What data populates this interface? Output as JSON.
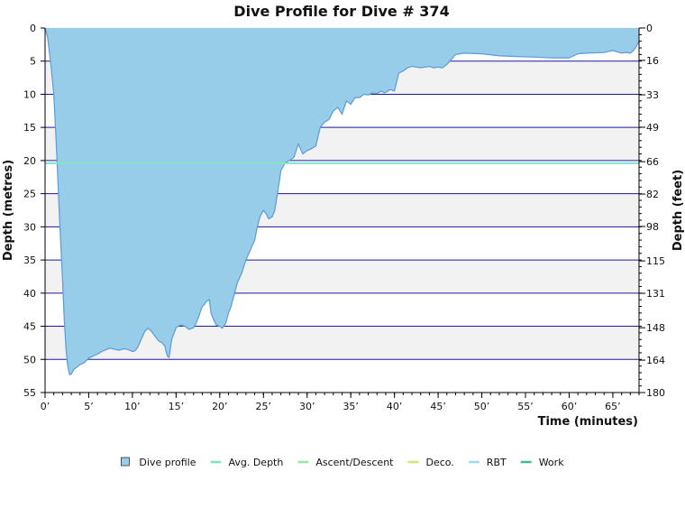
{
  "chart_data": {
    "type": "area",
    "title": "Dive Profile for Dive # 374",
    "xlabel": "Time (minutes)",
    "ylabel_left": "Depth (metres)",
    "ylabel_right": "Depth (feet)",
    "xlim": [
      0,
      68
    ],
    "ylim": [
      0,
      55
    ],
    "y_inverted": true,
    "x_ticks": [
      {
        "value": 0,
        "label": "0’"
      },
      {
        "value": 5,
        "label": "5’"
      },
      {
        "value": 10,
        "label": "10’"
      },
      {
        "value": 15,
        "label": "15’"
      },
      {
        "value": 20,
        "label": "20’"
      },
      {
        "value": 25,
        "label": "25’"
      },
      {
        "value": 30,
        "label": "30’"
      },
      {
        "value": 35,
        "label": "35’"
      },
      {
        "value": 40,
        "label": "40’"
      },
      {
        "value": 45,
        "label": "45’"
      },
      {
        "value": 50,
        "label": "50’"
      },
      {
        "value": 55,
        "label": "55’"
      },
      {
        "value": 60,
        "label": "60’"
      },
      {
        "value": 65,
        "label": "65’"
      }
    ],
    "y_ticks_left": [
      {
        "value": 0,
        "label": "0"
      },
      {
        "value": 5,
        "label": "5"
      },
      {
        "value": 10,
        "label": "10"
      },
      {
        "value": 15,
        "label": "15"
      },
      {
        "value": 20,
        "label": "20"
      },
      {
        "value": 25,
        "label": "25"
      },
      {
        "value": 30,
        "label": "30"
      },
      {
        "value": 35,
        "label": "35"
      },
      {
        "value": 40,
        "label": "40"
      },
      {
        "value": 45,
        "label": "45"
      },
      {
        "value": 50,
        "label": "50"
      },
      {
        "value": 55,
        "label": "55"
      }
    ],
    "y_ticks_right": [
      {
        "value": 0,
        "label": "0"
      },
      {
        "value": 16,
        "label": "16"
      },
      {
        "value": 33,
        "label": "33"
      },
      {
        "value": 49,
        "label": "49"
      },
      {
        "value": 66,
        "label": "66"
      },
      {
        "value": 82,
        "label": "82"
      },
      {
        "value": 98,
        "label": "98"
      },
      {
        "value": 115,
        "label": "115"
      },
      {
        "value": 131,
        "label": "131"
      },
      {
        "value": 148,
        "label": "148"
      },
      {
        "value": 164,
        "label": "164"
      },
      {
        "value": 180,
        "label": "180"
      }
    ],
    "grid": true,
    "avg_depth": 20.4,
    "series": [
      {
        "name": "Dive profile",
        "color": "#97cde9",
        "x": [
          0,
          0.3,
          0.7,
          1.0,
          1.3,
          1.7,
          2.0,
          2.2,
          2.4,
          2.6,
          2.8,
          3.0,
          3.3,
          3.6,
          4.0,
          4.5,
          5.0,
          5.5,
          6.0,
          6.5,
          7.0,
          7.5,
          8.0,
          8.5,
          9.0,
          9.5,
          10.0,
          10.3,
          10.6,
          11.0,
          11.4,
          11.8,
          12.2,
          12.6,
          13.0,
          13.4,
          13.7,
          14.0,
          14.2,
          14.5,
          15.0,
          15.5,
          16.0,
          16.5,
          17.0,
          17.3,
          17.6,
          18.0,
          18.2,
          18.5,
          18.8,
          19.0,
          19.3,
          19.6,
          20.0,
          20.3,
          20.7,
          21.0,
          21.3,
          21.7,
          22.0,
          22.5,
          23.0,
          23.5,
          24.0,
          24.3,
          24.6,
          25.0,
          25.3,
          25.6,
          26.0,
          26.3,
          26.6,
          27.0,
          27.5,
          28.0,
          28.5,
          29.0,
          29.5,
          30.0,
          30.5,
          31.0,
          31.5,
          32.0,
          32.5,
          33.0,
          33.5,
          34.0,
          34.5,
          35.0,
          35.5,
          36.0,
          36.5,
          37.0,
          37.5,
          38.0,
          38.5,
          38.8,
          39.0,
          39.5,
          40.0,
          40.5,
          41.0,
          41.5,
          42.0,
          42.5,
          43.0,
          43.5,
          44.0,
          44.5,
          45.0,
          45.5,
          46.0,
          47.0,
          48.0,
          50.0,
          52.0,
          54.0,
          56.0,
          58.0,
          60.0,
          61.0,
          62.0,
          64.0,
          65.0,
          66.0,
          66.5,
          67.0,
          67.3,
          67.6,
          68.0
        ],
        "depth": [
          0,
          1.5,
          6.0,
          10.0,
          18.0,
          30.0,
          38.0,
          44.0,
          48.5,
          51.0,
          52.3,
          52.2,
          51.5,
          51.2,
          50.8,
          50.5,
          49.8,
          49.5,
          49.2,
          48.8,
          48.5,
          48.3,
          48.5,
          48.6,
          48.4,
          48.5,
          48.8,
          48.7,
          48.2,
          47.0,
          45.8,
          45.3,
          45.8,
          46.5,
          47.2,
          47.5,
          48.0,
          49.5,
          49.7,
          47.0,
          45.2,
          44.8,
          45.0,
          45.5,
          45.2,
          44.5,
          43.5,
          42.0,
          41.8,
          41.2,
          41.0,
          43.0,
          44.0,
          44.8,
          45.0,
          45.3,
          44.5,
          43.0,
          42.0,
          40.0,
          38.5,
          37.0,
          35.0,
          33.5,
          32.0,
          30.0,
          28.5,
          27.5,
          28.0,
          28.8,
          28.5,
          27.5,
          25.0,
          21.5,
          20.3,
          20.0,
          19.5,
          17.5,
          19.0,
          18.5,
          18.2,
          17.8,
          15.0,
          14.2,
          13.8,
          12.5,
          12.0,
          13.0,
          11.0,
          11.5,
          10.5,
          10.5,
          10.0,
          10.1,
          9.8,
          9.9,
          9.5,
          9.8,
          9.7,
          9.3,
          9.5,
          6.8,
          6.5,
          6.0,
          5.8,
          5.9,
          6.0,
          5.9,
          5.8,
          6.0,
          5.9,
          6.0,
          5.5,
          4.0,
          3.8,
          3.9,
          4.2,
          4.3,
          4.4,
          4.5,
          4.5,
          3.9,
          3.8,
          3.7,
          3.4,
          3.8,
          3.7,
          3.8,
          3.5,
          3.0,
          2.0,
          0.5
        ]
      }
    ],
    "legend": [
      {
        "name": "Dive profile",
        "color": "#97cde9",
        "kind": "box"
      },
      {
        "name": "Avg. Depth",
        "color": "#7fe5c4",
        "kind": "line"
      },
      {
        "name": "Ascent/Descent",
        "color": "#9ee59e",
        "kind": "line"
      },
      {
        "name": "Deco.",
        "color": "#d6e57f",
        "kind": "line"
      },
      {
        "name": "RBT",
        "color": "#9fd8f2",
        "kind": "line"
      },
      {
        "name": "Work",
        "color": "#3fb89b",
        "kind": "line"
      }
    ],
    "legend_position": "bottom-center",
    "colors": {
      "gridline": "#1a1a9e",
      "band": "#f2f2f2",
      "profile_stroke": "#5b9bd8",
      "avg_line": "#7fe5c4"
    }
  }
}
